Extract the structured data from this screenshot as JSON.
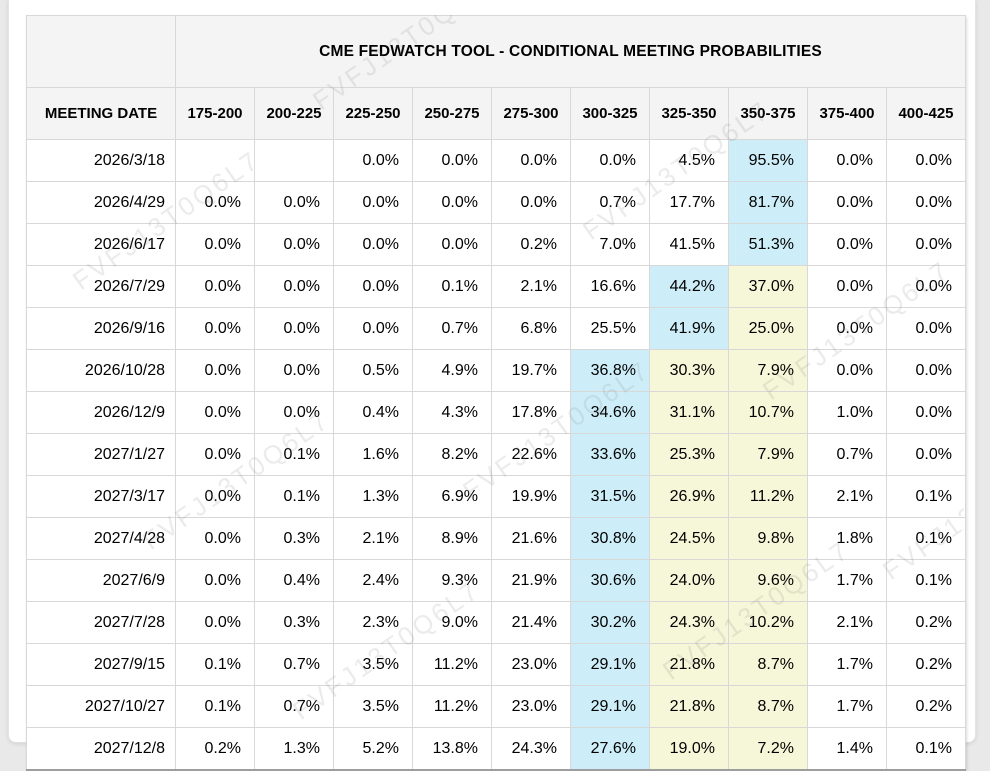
{
  "watermark": {
    "text": "FVFJ13T0Q6L7"
  },
  "colors": {
    "highlight_blue": "#cdeef8",
    "highlight_yellow": "#f6f6d8",
    "header_bg": "#f4f4f4",
    "grid_line": "#d8d8d8"
  },
  "chart_data": {
    "type": "table",
    "title": "CME FEDWATCH TOOL - CONDITIONAL MEETING PROBABILITIES",
    "row_header": "MEETING DATE",
    "columns": [
      "175-200",
      "200-225",
      "225-250",
      "250-275",
      "275-300",
      "300-325",
      "325-350",
      "350-375",
      "375-400",
      "400-425"
    ],
    "rows": [
      {
        "date": "2026/3/18",
        "values": [
          "",
          "",
          "0.0%",
          "0.0%",
          "0.0%",
          "0.0%",
          "4.5%",
          "95.5%",
          "0.0%",
          "0.0%"
        ],
        "highlights": [
          "",
          "",
          "",
          "",
          "",
          "",
          "",
          "blue",
          "",
          ""
        ]
      },
      {
        "date": "2026/4/29",
        "values": [
          "0.0%",
          "0.0%",
          "0.0%",
          "0.0%",
          "0.0%",
          "0.7%",
          "17.7%",
          "81.7%",
          "0.0%",
          "0.0%"
        ],
        "highlights": [
          "",
          "",
          "",
          "",
          "",
          "",
          "",
          "blue",
          "",
          ""
        ]
      },
      {
        "date": "2026/6/17",
        "values": [
          "0.0%",
          "0.0%",
          "0.0%",
          "0.0%",
          "0.2%",
          "7.0%",
          "41.5%",
          "51.3%",
          "0.0%",
          "0.0%"
        ],
        "highlights": [
          "",
          "",
          "",
          "",
          "",
          "",
          "",
          "blue",
          "",
          ""
        ]
      },
      {
        "date": "2026/7/29",
        "values": [
          "0.0%",
          "0.0%",
          "0.0%",
          "0.1%",
          "2.1%",
          "16.6%",
          "44.2%",
          "37.0%",
          "0.0%",
          "0.0%"
        ],
        "highlights": [
          "",
          "",
          "",
          "",
          "",
          "",
          "blue",
          "yellow",
          "",
          ""
        ]
      },
      {
        "date": "2026/9/16",
        "values": [
          "0.0%",
          "0.0%",
          "0.0%",
          "0.7%",
          "6.8%",
          "25.5%",
          "41.9%",
          "25.0%",
          "0.0%",
          "0.0%"
        ],
        "highlights": [
          "",
          "",
          "",
          "",
          "",
          "",
          "blue",
          "yellow",
          "",
          ""
        ]
      },
      {
        "date": "2026/10/28",
        "values": [
          "0.0%",
          "0.0%",
          "0.5%",
          "4.9%",
          "19.7%",
          "36.8%",
          "30.3%",
          "7.9%",
          "0.0%",
          "0.0%"
        ],
        "highlights": [
          "",
          "",
          "",
          "",
          "",
          "blue",
          "yellow",
          "yellow",
          "",
          ""
        ]
      },
      {
        "date": "2026/12/9",
        "values": [
          "0.0%",
          "0.0%",
          "0.4%",
          "4.3%",
          "17.8%",
          "34.6%",
          "31.1%",
          "10.7%",
          "1.0%",
          "0.0%"
        ],
        "highlights": [
          "",
          "",
          "",
          "",
          "",
          "blue",
          "yellow",
          "yellow",
          "",
          ""
        ]
      },
      {
        "date": "2027/1/27",
        "values": [
          "0.0%",
          "0.1%",
          "1.6%",
          "8.2%",
          "22.6%",
          "33.6%",
          "25.3%",
          "7.9%",
          "0.7%",
          "0.0%"
        ],
        "highlights": [
          "",
          "",
          "",
          "",
          "",
          "blue",
          "yellow",
          "yellow",
          "",
          ""
        ]
      },
      {
        "date": "2027/3/17",
        "values": [
          "0.0%",
          "0.1%",
          "1.3%",
          "6.9%",
          "19.9%",
          "31.5%",
          "26.9%",
          "11.2%",
          "2.1%",
          "0.1%"
        ],
        "highlights": [
          "",
          "",
          "",
          "",
          "",
          "blue",
          "yellow",
          "yellow",
          "",
          ""
        ]
      },
      {
        "date": "2027/4/28",
        "values": [
          "0.0%",
          "0.3%",
          "2.1%",
          "8.9%",
          "21.6%",
          "30.8%",
          "24.5%",
          "9.8%",
          "1.8%",
          "0.1%"
        ],
        "highlights": [
          "",
          "",
          "",
          "",
          "",
          "blue",
          "yellow",
          "yellow",
          "",
          ""
        ]
      },
      {
        "date": "2027/6/9",
        "values": [
          "0.0%",
          "0.4%",
          "2.4%",
          "9.3%",
          "21.9%",
          "30.6%",
          "24.0%",
          "9.6%",
          "1.7%",
          "0.1%"
        ],
        "highlights": [
          "",
          "",
          "",
          "",
          "",
          "blue",
          "yellow",
          "yellow",
          "",
          ""
        ]
      },
      {
        "date": "2027/7/28",
        "values": [
          "0.0%",
          "0.3%",
          "2.3%",
          "9.0%",
          "21.4%",
          "30.2%",
          "24.3%",
          "10.2%",
          "2.1%",
          "0.2%"
        ],
        "highlights": [
          "",
          "",
          "",
          "",
          "",
          "blue",
          "yellow",
          "yellow",
          "",
          ""
        ]
      },
      {
        "date": "2027/9/15",
        "values": [
          "0.1%",
          "0.7%",
          "3.5%",
          "11.2%",
          "23.0%",
          "29.1%",
          "21.8%",
          "8.7%",
          "1.7%",
          "0.2%"
        ],
        "highlights": [
          "",
          "",
          "",
          "",
          "",
          "blue",
          "yellow",
          "yellow",
          "",
          ""
        ]
      },
      {
        "date": "2027/10/27",
        "values": [
          "0.1%",
          "0.7%",
          "3.5%",
          "11.2%",
          "23.0%",
          "29.1%",
          "21.8%",
          "8.7%",
          "1.7%",
          "0.2%"
        ],
        "highlights": [
          "",
          "",
          "",
          "",
          "",
          "blue",
          "yellow",
          "yellow",
          "",
          ""
        ]
      },
      {
        "date": "2027/12/8",
        "values": [
          "0.2%",
          "1.3%",
          "5.2%",
          "13.8%",
          "24.3%",
          "27.6%",
          "19.0%",
          "7.2%",
          "1.4%",
          "0.1%"
        ],
        "highlights": [
          "",
          "",
          "",
          "",
          "",
          "blue",
          "yellow",
          "yellow",
          "",
          ""
        ]
      }
    ]
  }
}
